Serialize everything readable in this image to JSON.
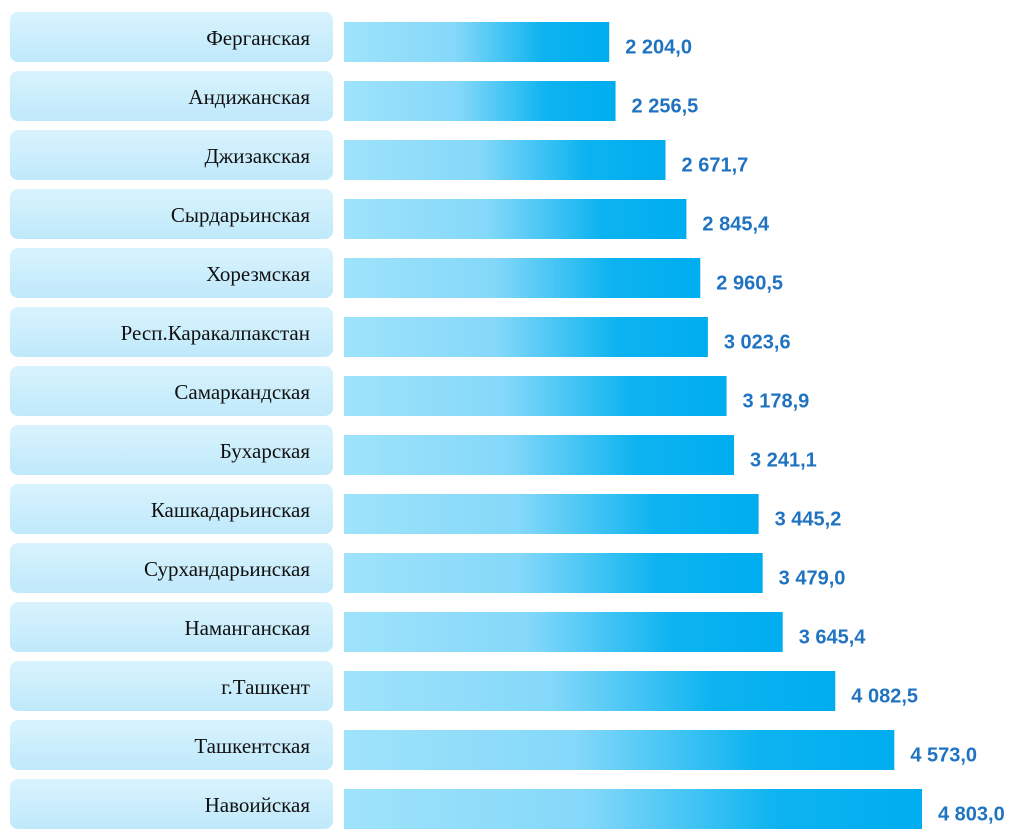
{
  "chart_data": {
    "type": "bar",
    "orientation": "horizontal",
    "categories": [
      "Ферганская",
      "Андижанская",
      "Джизакская",
      "Сырдарьинская",
      "Хорезмская",
      "Респ.Каракалпакстан",
      "Самаркандская",
      "Бухарская",
      "Кашкадарьинская",
      "Сурхандарьинская",
      "Наманганская",
      "г.Ташкент",
      "Ташкентская",
      "Навоийская"
    ],
    "values": [
      2204.0,
      2256.5,
      2671.7,
      2845.4,
      2960.5,
      3023.6,
      3178.9,
      3241.1,
      3445.2,
      3479.0,
      3645.4,
      4082.5,
      4573.0,
      4803.0
    ],
    "value_labels": [
      "2 204,0",
      "2 256,5",
      "2 671,7",
      "2 845,4",
      "2 960,5",
      "3 023,6",
      "3 178,9",
      "3 241,1",
      "3 445,2",
      "3 479,0",
      "3 645,4",
      "4 082,5",
      "4 573,0",
      "4 803,0"
    ],
    "color": "#00adef"
  }
}
